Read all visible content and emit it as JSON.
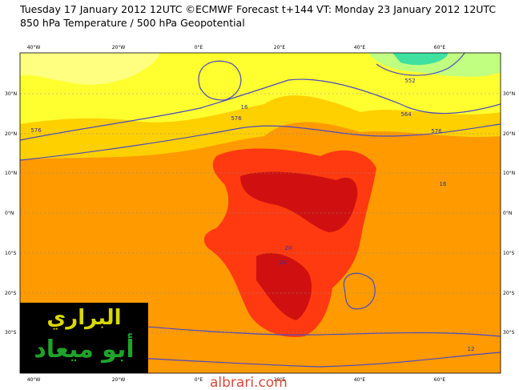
{
  "header": {
    "line1": "Tuesday 17 January 2012 12UTC ©ECMWF Forecast t+144 VT: Monday 23 January 2012 12UTC",
    "line2": "850 hPa Temperature / 500 hPa Geopotential"
  },
  "map": {
    "lon_labels_top": [
      "40°W",
      "20°W",
      "0°E",
      "20°E",
      "40°E",
      "60°E"
    ],
    "lon_labels_bottom": [
      "40°W",
      "20°W",
      "0°E",
      "20°E",
      "40°E",
      "60°E"
    ],
    "lat_labels_left": [
      "30°N",
      "20°N",
      "10°N",
      "0°N",
      "10°S",
      "20°S",
      "30°S"
    ],
    "lat_labels_right": [
      "30°N",
      "20°N",
      "10°N",
      "0°N",
      "10°S",
      "20°S",
      "30°S"
    ],
    "contour_labels": [
      "552",
      "564",
      "576",
      "576",
      "576",
      "16",
      "16",
      "12",
      "20",
      "24"
    ]
  },
  "logo": {
    "line1": "البراري",
    "line2": "أبو ميعاد"
  },
  "watermark": "albrari.com"
}
